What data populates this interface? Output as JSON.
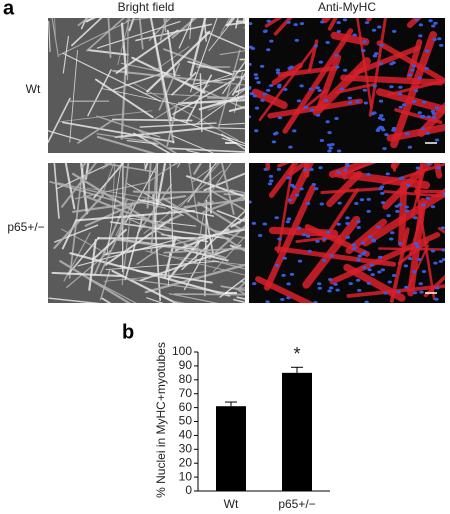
{
  "panel_a": {
    "label": "a",
    "columns": [
      "Bright field",
      "Anti-MyHC"
    ],
    "rows": [
      "Wt",
      "p65+/−"
    ]
  },
  "chart_data": {
    "type": "bar",
    "panel_label": "b",
    "y_label": "% Nuclei in MyHC+myotubes",
    "categories": [
      "Wt",
      "p65+/−"
    ],
    "values": [
      61,
      85
    ],
    "errors": [
      3,
      4
    ],
    "color": "#000000",
    "ylim": [
      0,
      100
    ],
    "yticks": [
      0,
      10,
      20,
      30,
      40,
      50,
      60,
      70,
      80,
      90,
      100
    ],
    "annotations": [
      {
        "text": "*",
        "x": "p65+/−"
      }
    ]
  }
}
